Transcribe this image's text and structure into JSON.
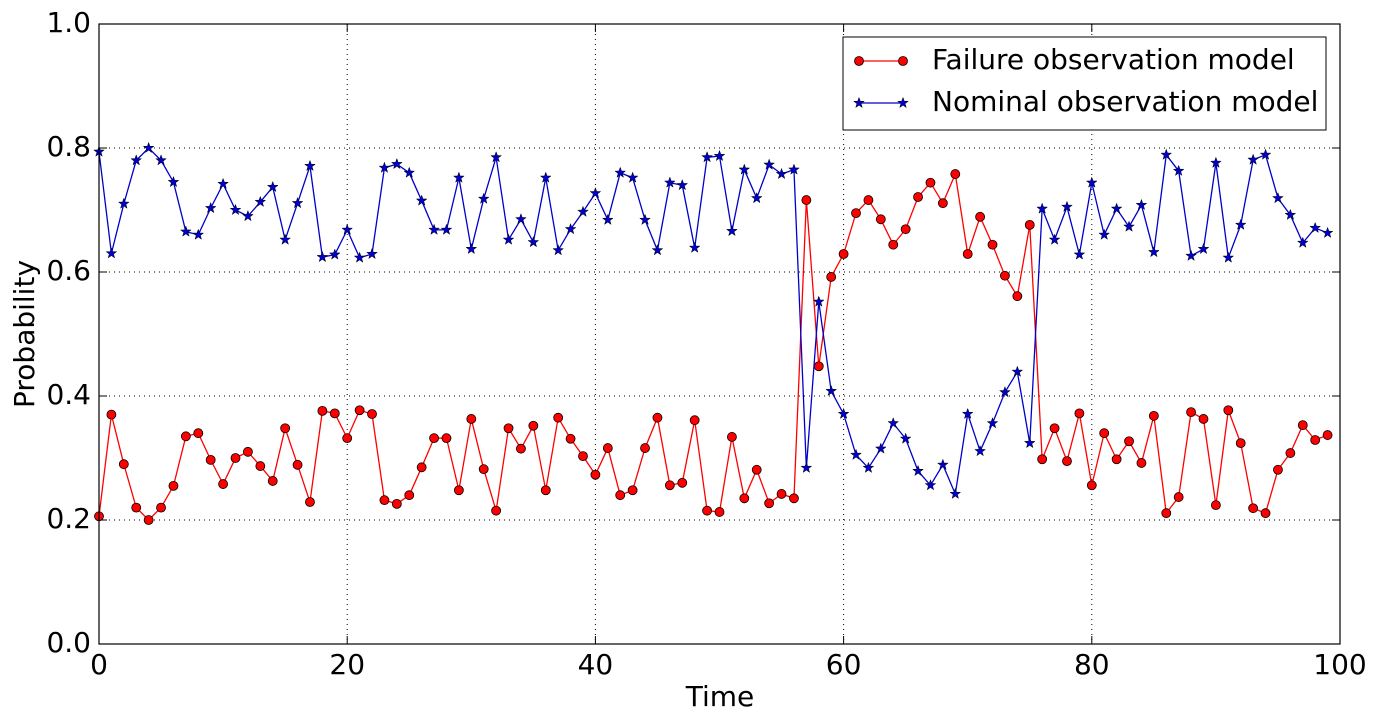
{
  "chart_data": {
    "type": "line",
    "x_label": "Time",
    "y_label": "Probability",
    "x": [
      0,
      1,
      2,
      3,
      4,
      5,
      6,
      7,
      8,
      9,
      10,
      11,
      12,
      13,
      14,
      15,
      16,
      17,
      18,
      19,
      20,
      21,
      22,
      23,
      24,
      25,
      26,
      27,
      28,
      29,
      30,
      31,
      32,
      33,
      34,
      35,
      36,
      37,
      38,
      39,
      40,
      41,
      42,
      43,
      44,
      45,
      46,
      47,
      48,
      49,
      50,
      51,
      52,
      53,
      54,
      55,
      56,
      57,
      58,
      59,
      60,
      61,
      62,
      63,
      64,
      65,
      66,
      67,
      68,
      69,
      70,
      71,
      72,
      73,
      74,
      75,
      76,
      77,
      78,
      79,
      80,
      81,
      82,
      83,
      84,
      85,
      86,
      87,
      88,
      89,
      90,
      91,
      92,
      93,
      94,
      95,
      96,
      97,
      98,
      99
    ],
    "series": [
      {
        "name": "Failure observation model",
        "color": "#ff0000",
        "marker": "circle",
        "values": [
          0.206,
          0.37,
          0.29,
          0.22,
          0.2,
          0.22,
          0.255,
          0.335,
          0.34,
          0.297,
          0.258,
          0.3,
          0.31,
          0.287,
          0.263,
          0.348,
          0.289,
          0.229,
          0.376,
          0.372,
          0.332,
          0.377,
          0.371,
          0.232,
          0.226,
          0.24,
          0.285,
          0.332,
          0.332,
          0.248,
          0.363,
          0.282,
          0.215,
          0.348,
          0.315,
          0.352,
          0.248,
          0.365,
          0.331,
          0.303,
          0.273,
          0.316,
          0.24,
          0.248,
          0.316,
          0.365,
          0.256,
          0.26,
          0.361,
          0.215,
          0.213,
          0.334,
          0.235,
          0.281,
          0.227,
          0.242,
          0.235,
          0.716,
          0.448,
          0.592,
          0.629,
          0.695,
          0.716,
          0.685,
          0.644,
          0.669,
          0.721,
          0.744,
          0.711,
          0.758,
          0.629,
          0.689,
          0.644,
          0.594,
          0.561,
          0.676,
          0.298,
          0.348,
          0.295,
          0.372,
          0.256,
          0.34,
          0.298,
          0.327,
          0.292,
          0.368,
          0.211,
          0.237,
          0.374,
          0.363,
          0.224,
          0.377,
          0.324,
          0.219,
          0.211,
          0.281,
          0.308,
          0.353,
          0.329,
          0.337
        ]
      },
      {
        "name": "Nominal observation model",
        "color": "#0000cc",
        "marker": "star",
        "values": [
          0.794,
          0.63,
          0.71,
          0.78,
          0.8,
          0.78,
          0.745,
          0.665,
          0.66,
          0.703,
          0.742,
          0.7,
          0.69,
          0.713,
          0.737,
          0.652,
          0.711,
          0.771,
          0.624,
          0.628,
          0.668,
          0.623,
          0.629,
          0.768,
          0.774,
          0.76,
          0.715,
          0.668,
          0.668,
          0.752,
          0.637,
          0.718,
          0.785,
          0.652,
          0.685,
          0.648,
          0.752,
          0.635,
          0.669,
          0.697,
          0.727,
          0.684,
          0.76,
          0.752,
          0.684,
          0.635,
          0.744,
          0.74,
          0.639,
          0.785,
          0.787,
          0.666,
          0.765,
          0.719,
          0.773,
          0.758,
          0.765,
          0.284,
          0.552,
          0.408,
          0.371,
          0.305,
          0.284,
          0.315,
          0.356,
          0.331,
          0.279,
          0.256,
          0.289,
          0.242,
          0.371,
          0.311,
          0.356,
          0.406,
          0.439,
          0.324,
          0.702,
          0.652,
          0.705,
          0.628,
          0.744,
          0.66,
          0.702,
          0.673,
          0.708,
          0.632,
          0.789,
          0.763,
          0.626,
          0.637,
          0.776,
          0.623,
          0.676,
          0.781,
          0.789,
          0.719,
          0.692,
          0.647,
          0.671,
          0.663
        ]
      }
    ],
    "xlim": [
      0,
      100
    ],
    "xticks": [
      0,
      20,
      40,
      60,
      80,
      100
    ],
    "ylim": [
      0,
      1
    ],
    "yticks": [
      {
        "value": 0,
        "label": "0.0"
      },
      {
        "value": 0.2,
        "label": "0.2"
      },
      {
        "value": 0.4,
        "label": "0.4"
      },
      {
        "value": 0.6,
        "label": "0.6"
      },
      {
        "value": 0.8,
        "label": "0.8"
      },
      {
        "value": 1,
        "label": "1.0"
      }
    ],
    "grid": true,
    "legend": "upper right"
  }
}
